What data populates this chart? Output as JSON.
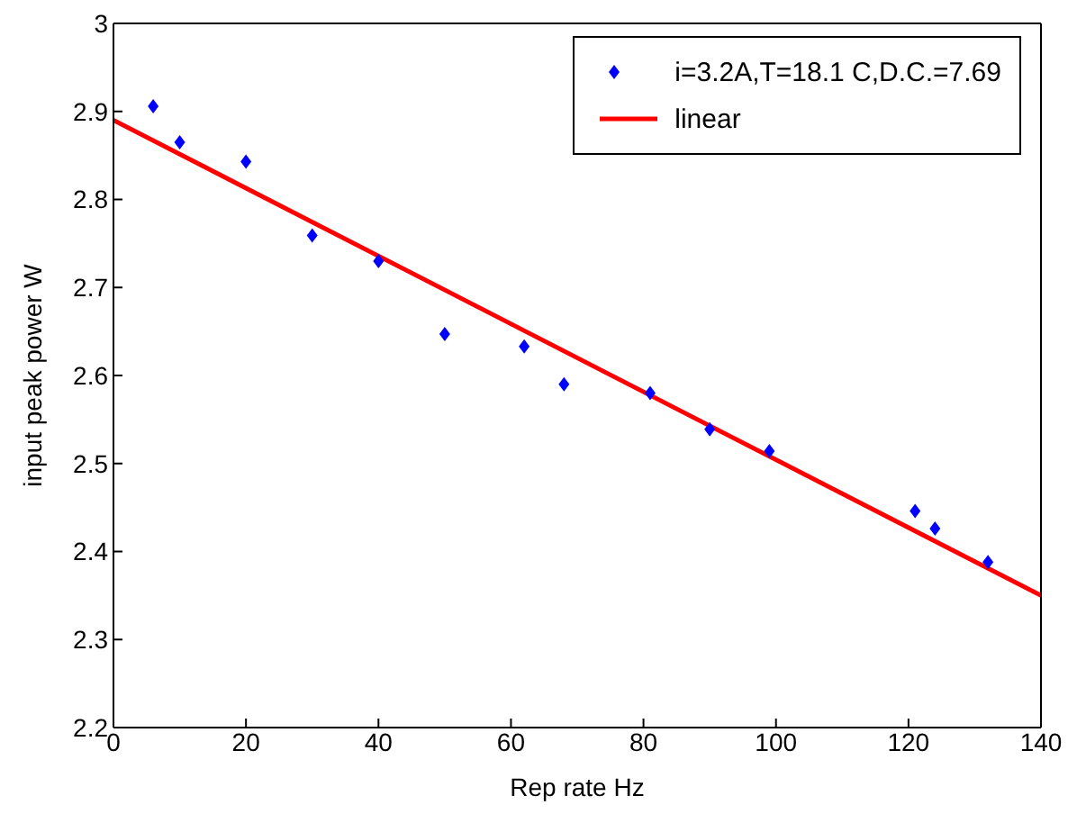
{
  "chart_data": {
    "type": "scatter",
    "xlabel": "Rep rate Hz",
    "ylabel": "input peak power W",
    "xlim": [
      0,
      140
    ],
    "xticks": [
      0,
      20,
      40,
      60,
      80,
      100,
      120,
      140
    ],
    "ylim": [
      2.2,
      3
    ],
    "yticks": [
      2.2,
      2.3,
      2.4,
      2.5,
      2.6,
      2.7,
      2.8,
      2.9,
      3
    ],
    "legend": "top right",
    "series": [
      {
        "name": "i=3.2A,T=18.1 C,D.C.=7.69",
        "marker": "diamond",
        "color": "#0000ff",
        "x": [
          6,
          10,
          20,
          30,
          40,
          50,
          62,
          68,
          81,
          90,
          99,
          121,
          124,
          132
        ],
        "values": [
          2.906,
          2.865,
          2.843,
          2.759,
          2.73,
          2.647,
          2.633,
          2.59,
          2.58,
          2.539,
          2.514,
          2.446,
          2.426,
          2.388
        ]
      },
      {
        "name": "linear",
        "type": "line",
        "color": "#ff0000",
        "line_style": "solid",
        "x": [
          0,
          140
        ],
        "values": [
          2.89,
          2.35
        ]
      }
    ]
  }
}
